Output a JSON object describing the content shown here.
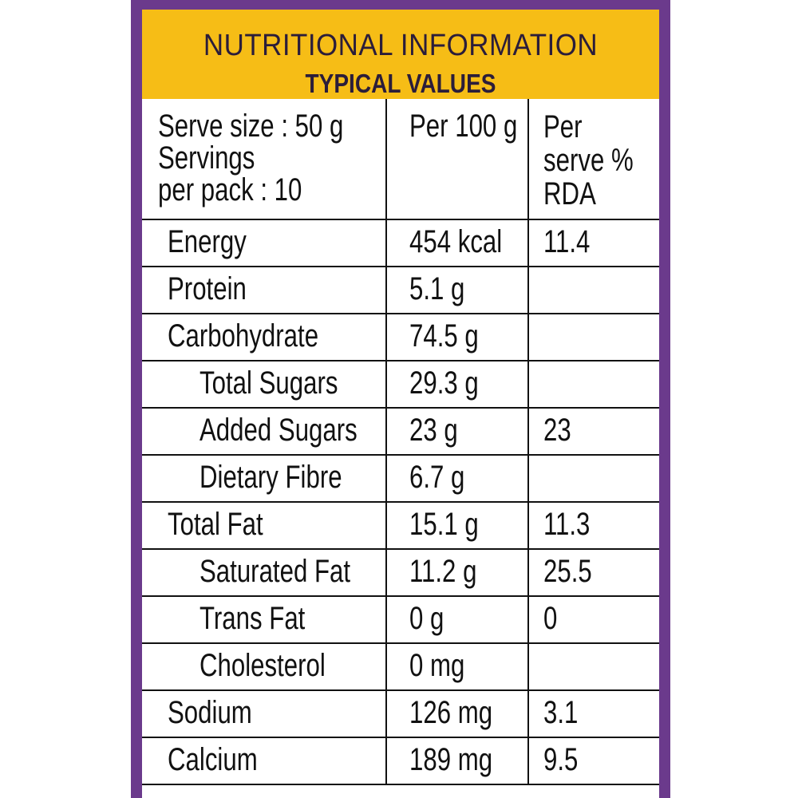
{
  "header": {
    "title": "NUTRITIONAL INFORMATION",
    "subtitle": "TYPICAL VALUES"
  },
  "table": {
    "serve_info": [
      "Serve size : 50 g",
      "Servings",
      "per pack : 10"
    ],
    "col_per100": "Per 100 g",
    "col_rda": [
      "Per",
      "serve %",
      "RDA"
    ],
    "rows": [
      {
        "name": "Energy",
        "per100": "454 kcal",
        "rda": "11.4"
      },
      {
        "name": "Protein",
        "per100": "5.1 g",
        "rda": ""
      },
      {
        "name": "Carbohydrate",
        "per100": "74.5 g",
        "rda": ""
      },
      {
        "name": "Total Sugars",
        "per100": "29.3 g",
        "rda": ""
      },
      {
        "name": "Added Sugars",
        "per100": "23 g",
        "rda": "23"
      },
      {
        "name": "Dietary Fibre",
        "per100": "6.7 g",
        "rda": ""
      },
      {
        "name": "Total Fat",
        "per100": "15.1 g",
        "rda": "11.3"
      },
      {
        "name": "Saturated Fat",
        "per100": "11.2 g",
        "rda": "25.5"
      },
      {
        "name": "Trans Fat",
        "per100": "0 g",
        "rda": "0"
      },
      {
        "name": "Cholesterol",
        "per100": "0 mg",
        "rda": ""
      },
      {
        "name": "Sodium",
        "per100": "126 mg",
        "rda": "3.1"
      },
      {
        "name": "Calcium",
        "per100": "189 mg",
        "rda": "9.5"
      }
    ]
  },
  "colors": {
    "border": "#6b3a8c",
    "header_bg": "#f6bd16",
    "text": "#111111"
  }
}
